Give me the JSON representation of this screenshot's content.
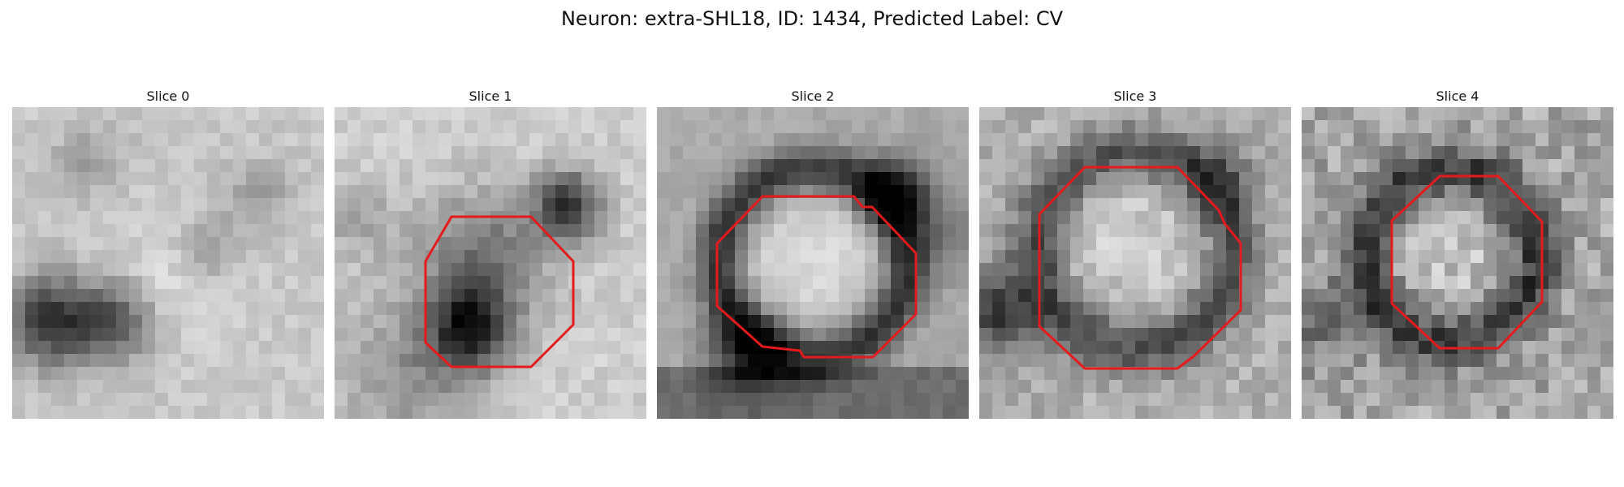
{
  "figure": {
    "title": "Neuron: extra-SHL18, ID: 1434, Predicted Label: CV",
    "contour_color": "#e41a1c",
    "panels": [
      {
        "title": "Slice 0",
        "has_contour": false,
        "pattern": "blobs_dark_left"
      },
      {
        "title": "Slice 1",
        "has_contour": true,
        "pattern": "dark_body_upper_right"
      },
      {
        "title": "Slice 2",
        "has_contour": true,
        "pattern": "bright_cell_dark_ring"
      },
      {
        "title": "Slice 3",
        "has_contour": true,
        "pattern": "noisy_cell_dark_ring"
      },
      {
        "title": "Slice 4",
        "has_contour": true,
        "pattern": "speckle_cell_dark_ring"
      }
    ]
  }
}
